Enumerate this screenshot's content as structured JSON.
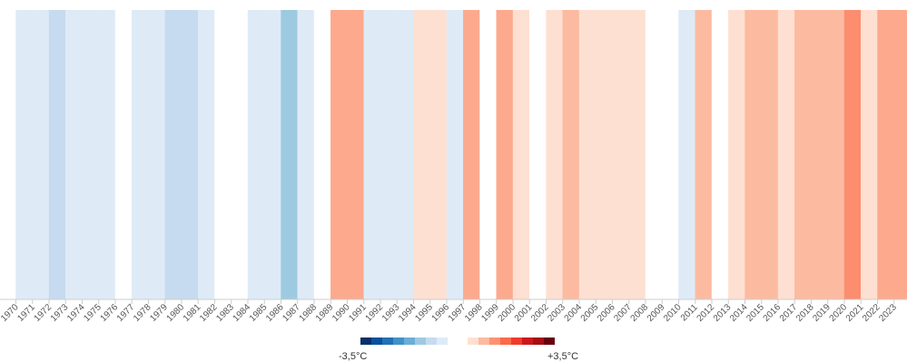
{
  "chart_data": {
    "type": "heatmap",
    "categories": [
      "1970",
      "1971",
      "1972",
      "1973",
      "1974",
      "1975",
      "1976",
      "1977",
      "1978",
      "1979",
      "1980",
      "1981",
      "1982",
      "1983",
      "1984",
      "1985",
      "1986",
      "1987",
      "1988",
      "1989",
      "1990",
      "1991",
      "1992",
      "1993",
      "1994",
      "1995",
      "1996",
      "1997",
      "1998",
      "1999",
      "2000",
      "2001",
      "2002",
      "2003",
      "2004",
      "2005",
      "2006",
      "2007",
      "2008",
      "2009",
      "2010",
      "2011",
      "2012",
      "2013",
      "2014",
      "2015",
      "2016",
      "2017",
      "2018",
      "2019",
      "2020",
      "2021",
      "2022",
      "2023"
    ],
    "values": [
      -0.5,
      -0.5,
      -1.0,
      -0.5,
      -0.5,
      -0.5,
      0,
      -0.5,
      -0.5,
      -1.0,
      -1.0,
      -0.5,
      0,
      0,
      -0.5,
      -0.5,
      -2.0,
      -0.5,
      0,
      1.5,
      1.5,
      -0.5,
      -0.5,
      -0.5,
      0.5,
      0.5,
      -0.5,
      1.5,
      0,
      1.5,
      0.5,
      0,
      0.5,
      1.0,
      0.5,
      0.5,
      0.5,
      0.5,
      0,
      0,
      -0.5,
      1.0,
      0,
      0.5,
      1.0,
      1.0,
      0.5,
      1.0,
      1.0,
      1.0,
      2.0,
      0.5,
      1.5,
      1.5
    ],
    "zlim": [
      -3.5,
      3.5
    ],
    "legend": {
      "min_label": "-3,5°C",
      "max_label": "+3,5°C",
      "cool_colors": [
        "#08306b",
        "#08519c",
        "#2171b5",
        "#4292c6",
        "#6baed6",
        "#9ecae1",
        "#c6dbef",
        "#deebf7"
      ],
      "warm_colors": [
        "#fee0d2",
        "#fcbba1",
        "#fc9272",
        "#fb6a4a",
        "#ef3b2c",
        "#cb181d",
        "#a50f15",
        "#67000d"
      ]
    },
    "colors": {
      "-2.0": "#9ecae1",
      "-1.0": "#c6dbef",
      "-0.5": "#deebf7",
      "0": "#ffffff",
      "0.5": "#fee0d2",
      "1.0": "#fcbba1",
      "1.5": "#fca98e",
      "2.0": "#fc8d6f"
    },
    "grid": false,
    "title": "",
    "xlabel": "",
    "ylabel": ""
  }
}
